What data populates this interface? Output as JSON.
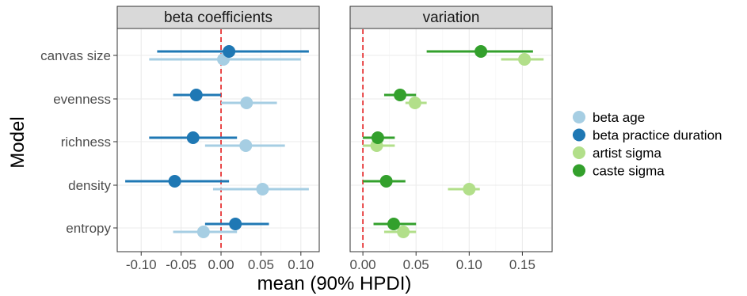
{
  "chart_data": {
    "type": "forest",
    "ylabel": "Model",
    "xlabel": "mean (90% HPDI)",
    "models": [
      "canvas size",
      "evenness",
      "richness",
      "density",
      "entropy"
    ],
    "reference_line": {
      "x": 0,
      "color": "#e41a1c",
      "style": "dashed"
    },
    "legend": {
      "placement": "right"
    },
    "grid": true,
    "facets": [
      {
        "title": "beta coefficients",
        "xlim": [
          -0.13,
          0.123
        ],
        "xticks": [
          -0.1,
          -0.05,
          0.0,
          0.05,
          0.1
        ],
        "xtick_labels": [
          "-0.10",
          "-0.05",
          "0.00",
          "0.05",
          "0.10"
        ],
        "series": [
          {
            "name": "beta age",
            "color": "#a6cee3",
            "points": [
              {
                "model": "canvas size",
                "mean": 0.003,
                "lower": -0.09,
                "upper": 0.1
              },
              {
                "model": "evenness",
                "mean": 0.032,
                "lower": 0.0,
                "upper": 0.07
              },
              {
                "model": "richness",
                "mean": 0.031,
                "lower": -0.02,
                "upper": 0.08
              },
              {
                "model": "density",
                "mean": 0.052,
                "lower": -0.01,
                "upper": 0.11
              },
              {
                "model": "entropy",
                "mean": -0.022,
                "lower": -0.06,
                "upper": 0.02
              }
            ]
          },
          {
            "name": "beta practice duration",
            "color": "#1f78b4",
            "points": [
              {
                "model": "canvas size",
                "mean": 0.01,
                "lower": -0.08,
                "upper": 0.11
              },
              {
                "model": "evenness",
                "mean": -0.031,
                "lower": -0.06,
                "upper": 0.0
              },
              {
                "model": "richness",
                "mean": -0.035,
                "lower": -0.09,
                "upper": 0.02
              },
              {
                "model": "density",
                "mean": -0.058,
                "lower": -0.12,
                "upper": 0.01
              },
              {
                "model": "entropy",
                "mean": 0.018,
                "lower": -0.02,
                "upper": 0.06
              }
            ]
          }
        ]
      },
      {
        "title": "variation",
        "xlim": [
          -0.012,
          0.178
        ],
        "xticks": [
          0.0,
          0.05,
          0.1,
          0.15
        ],
        "xtick_labels": [
          "0.00",
          "0.05",
          "0.10",
          "0.15"
        ],
        "series": [
          {
            "name": "artist sigma",
            "color": "#b2df8a",
            "points": [
              {
                "model": "canvas size",
                "mean": 0.152,
                "lower": 0.13,
                "upper": 0.17
              },
              {
                "model": "evenness",
                "mean": 0.049,
                "lower": 0.04,
                "upper": 0.06
              },
              {
                "model": "richness",
                "mean": 0.013,
                "lower": 0.0,
                "upper": 0.03
              },
              {
                "model": "density",
                "mean": 0.1,
                "lower": 0.08,
                "upper": 0.11
              },
              {
                "model": "entropy",
                "mean": 0.038,
                "lower": 0.02,
                "upper": 0.05
              }
            ]
          },
          {
            "name": "caste sigma",
            "color": "#33a02c",
            "points": [
              {
                "model": "canvas size",
                "mean": 0.111,
                "lower": 0.06,
                "upper": 0.16
              },
              {
                "model": "evenness",
                "mean": 0.035,
                "lower": 0.02,
                "upper": 0.05
              },
              {
                "model": "richness",
                "mean": 0.014,
                "lower": 0.0,
                "upper": 0.03
              },
              {
                "model": "density",
                "mean": 0.022,
                "lower": 0.0,
                "upper": 0.04
              },
              {
                "model": "entropy",
                "mean": 0.029,
                "lower": 0.01,
                "upper": 0.05
              }
            ]
          }
        ]
      }
    ],
    "legend_entries": [
      {
        "name": "beta age",
        "color": "#a6cee3"
      },
      {
        "name": "beta practice duration",
        "color": "#1f78b4"
      },
      {
        "name": "artist sigma",
        "color": "#b2df8a"
      },
      {
        "name": "caste sigma",
        "color": "#33a02c"
      }
    ]
  }
}
